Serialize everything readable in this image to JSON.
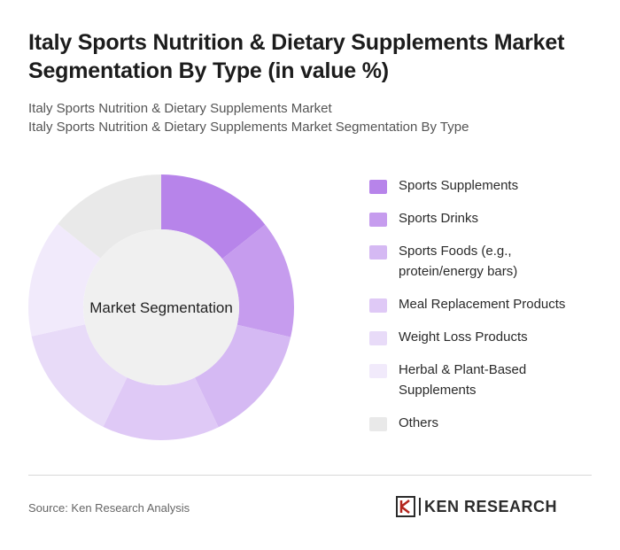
{
  "title": "Italy Sports Nutrition & Dietary Supplements Market Segmentation By Type (in value %)",
  "subtitle_line1": "Italy Sports Nutrition & Dietary Supplements Market",
  "subtitle_line2": "Italy Sports Nutrition & Dietary Supplements Market Segmentation By Type",
  "center_label": "Market Segmentation",
  "source": "Source: Ken Research Analysis",
  "logo_text": "KEN RESEARCH",
  "chart_data": {
    "type": "pie",
    "style": "donut",
    "categories": [
      "Sports Supplements",
      "Sports Drinks",
      "Sports Foods (e.g., protein/energy bars)",
      "Meal Replacement Products",
      "Weight Loss Products",
      "Herbal & Plant-Based Supplements",
      "Others"
    ],
    "values": [
      14.3,
      14.3,
      14.3,
      14.3,
      14.3,
      14.3,
      14.2
    ],
    "colors": [
      "#b784ea",
      "#c69cee",
      "#d5b9f3",
      "#dfc9f6",
      "#e8dbf8",
      "#f1eafb",
      "#e9e9e9"
    ],
    "legend_position": "right"
  }
}
